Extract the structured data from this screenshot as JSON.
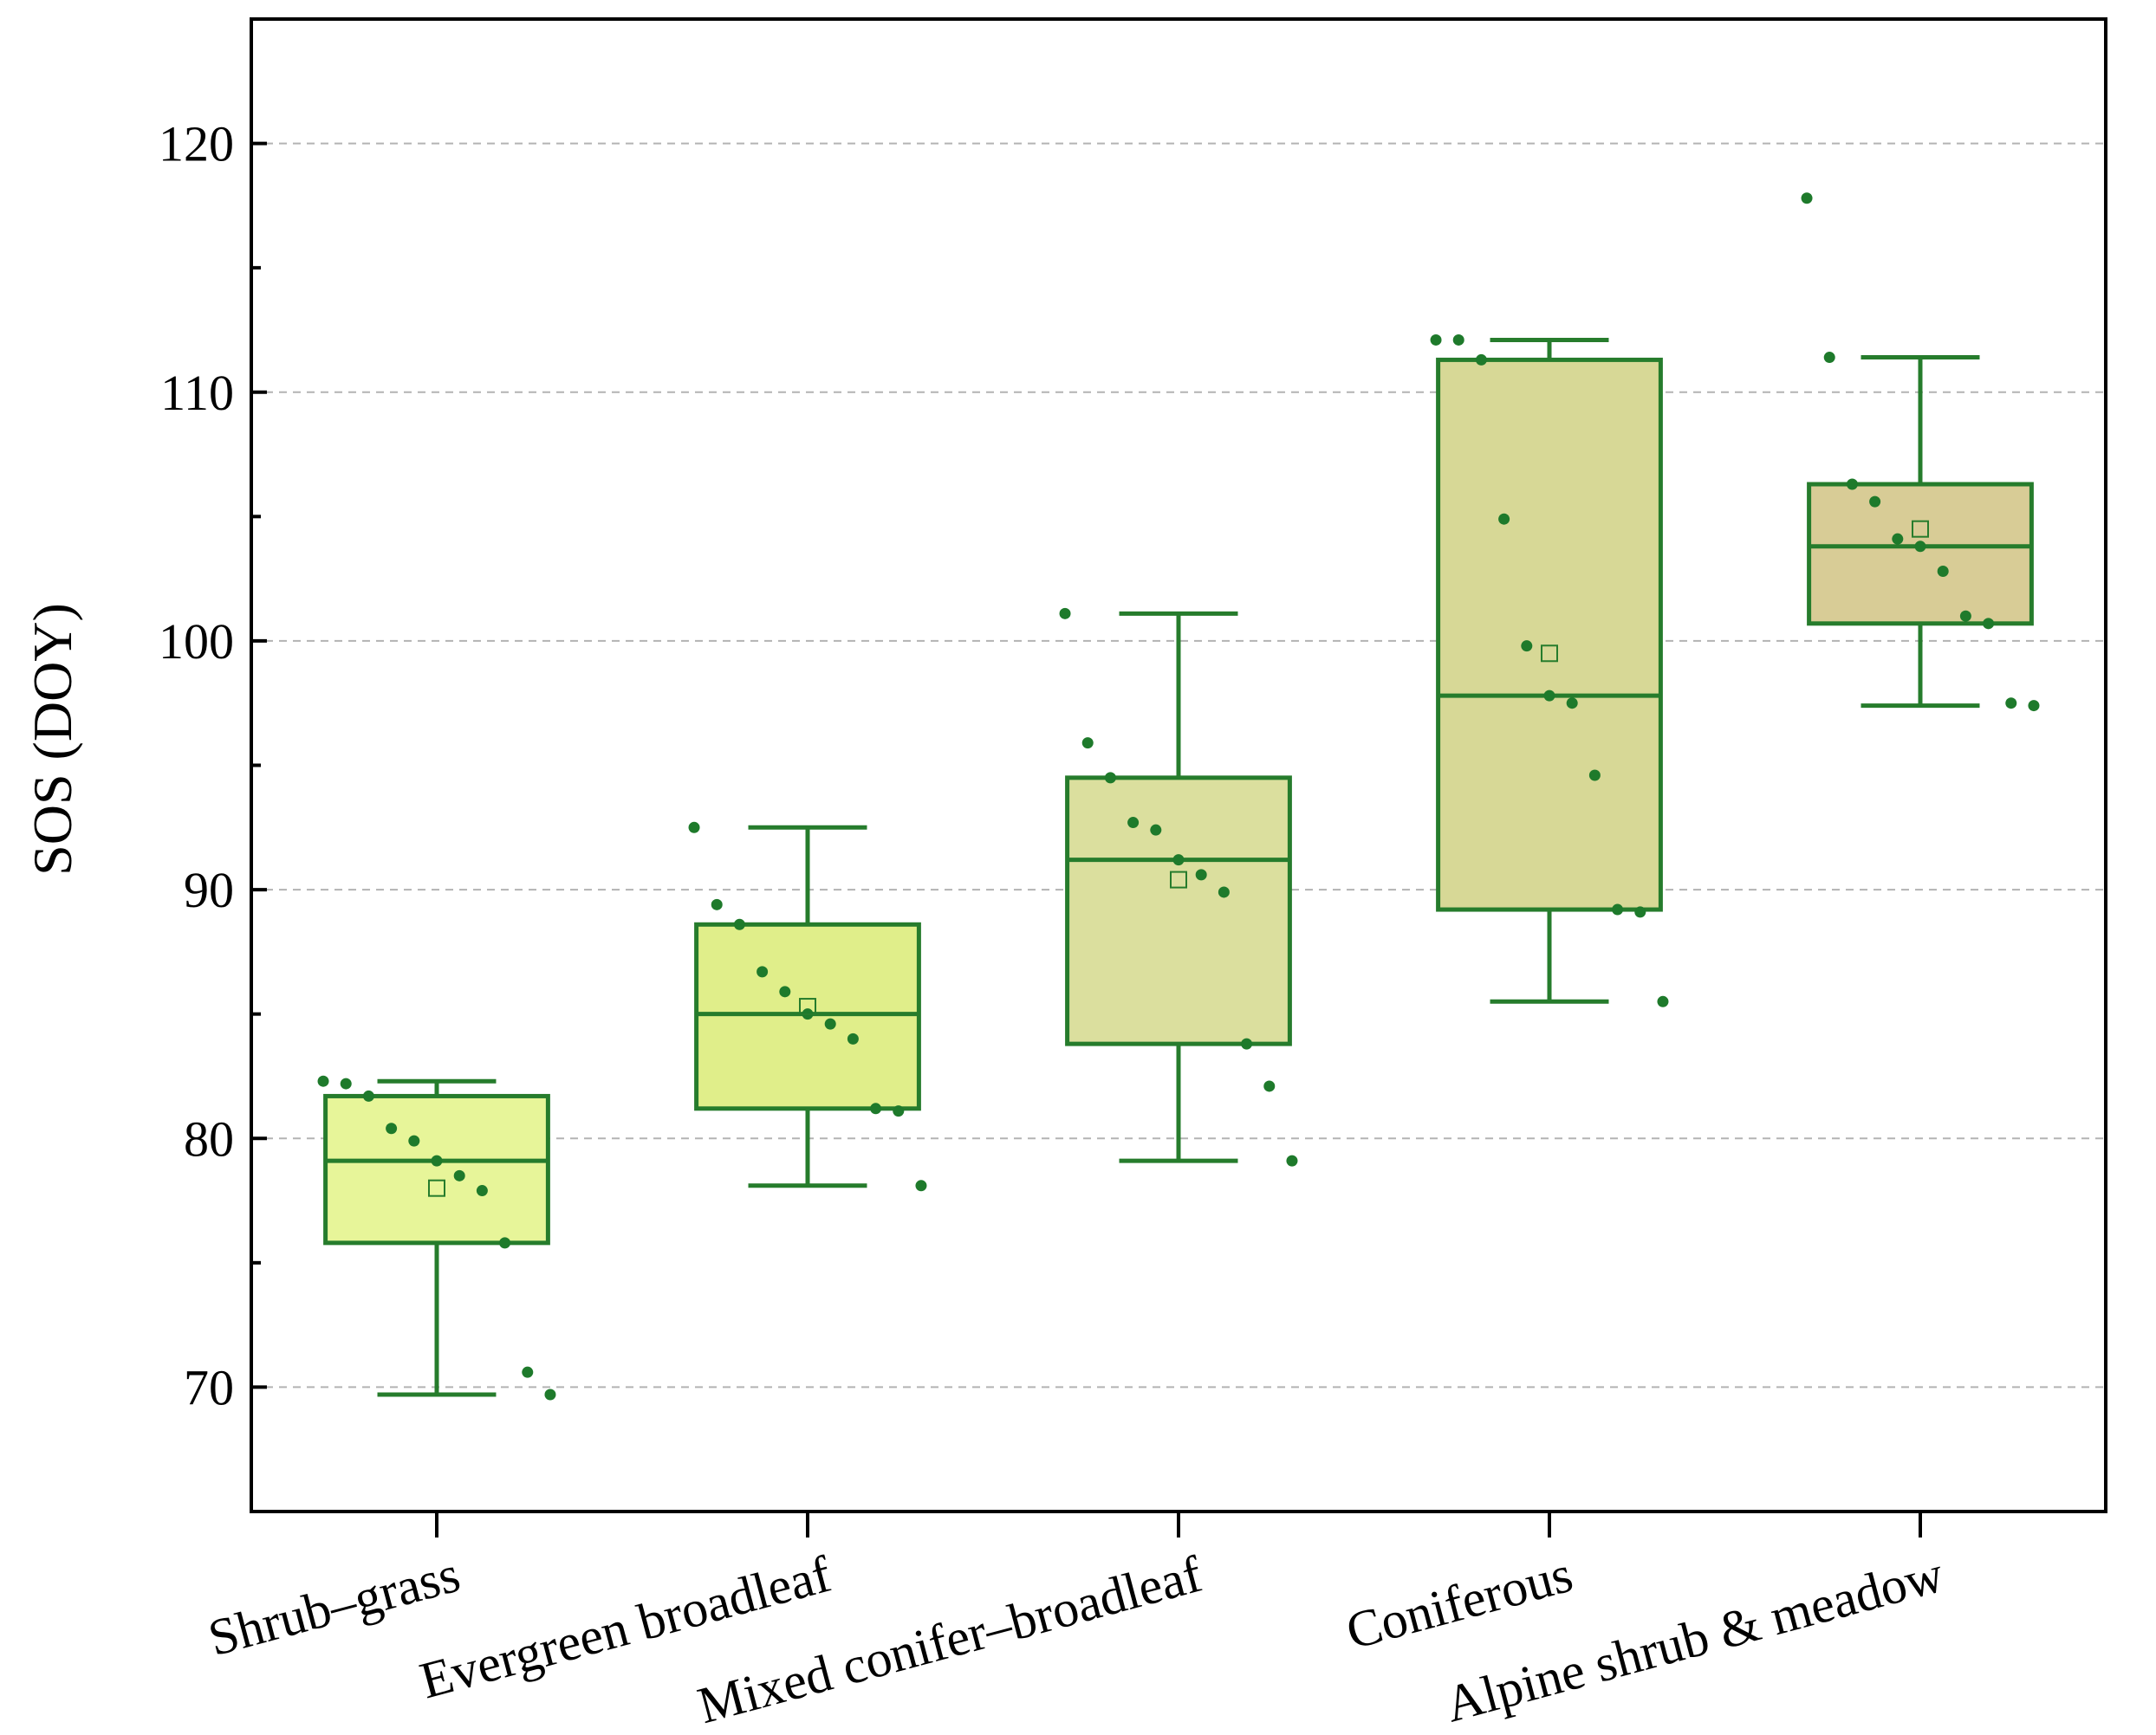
{
  "chart_data": {
    "type": "box",
    "title": "",
    "xlabel": "",
    "ylabel": "SOS (DOY)",
    "ylim": [
      65,
      125
    ],
    "yticks": [
      70,
      80,
      90,
      100,
      110,
      120
    ],
    "grid": "horizontal-dashed",
    "categories": [
      "Shrub–grass",
      "Evergreen broadleaf",
      "Mixed conifer–broadleaf",
      "Coniferous",
      "Alpine shrub & meadow"
    ],
    "boxes": [
      {
        "name": "Shrub–grass",
        "fill": "#e7f599",
        "whisker_low": 69.7,
        "q1": 75.8,
        "median": 79.1,
        "q3": 81.7,
        "whisker_high": 82.3,
        "mean": 78.0,
        "points": [
          82.3,
          82.2,
          81.7,
          80.4,
          79.9,
          79.1,
          78.5,
          77.9,
          75.8,
          70.6,
          69.7
        ]
      },
      {
        "name": "Evergreen broadleaf",
        "fill": "#e0ee8a",
        "whisker_low": 78.1,
        "q1": 81.2,
        "median": 85.0,
        "q3": 88.6,
        "whisker_high": 92.5,
        "mean": 85.3,
        "points": [
          92.5,
          89.4,
          88.6,
          86.7,
          85.9,
          85.0,
          84.6,
          84.0,
          81.2,
          81.1,
          78.1
        ]
      },
      {
        "name": "Mixed conifer–broadleaf",
        "fill": "#dbdf9e",
        "whisker_low": 79.1,
        "q1": 83.8,
        "median": 91.2,
        "q3": 94.5,
        "whisker_high": 101.1,
        "mean": 90.4,
        "points": [
          101.1,
          95.9,
          94.5,
          92.7,
          92.4,
          91.2,
          90.6,
          89.9,
          83.8,
          82.1,
          79.1
        ]
      },
      {
        "name": "Coniferous",
        "fill": "#d7d896",
        "whisker_low": 85.5,
        "q1": 89.2,
        "median": 97.8,
        "q3": 111.3,
        "whisker_high": 112.1,
        "mean": 99.5,
        "points": [
          112.1,
          112.1,
          111.3,
          104.9,
          99.8,
          97.8,
          97.5,
          94.6,
          89.2,
          89.1,
          85.5
        ]
      },
      {
        "name": "Alpine shrub & meadow",
        "fill": "#d8cc96",
        "whisker_low": 97.4,
        "q1": 100.7,
        "median": 103.8,
        "q3": 106.3,
        "whisker_high": 111.4,
        "mean": 104.5,
        "points": [
          117.8,
          111.4,
          106.3,
          105.6,
          104.1,
          103.8,
          102.8,
          101.0,
          100.7,
          97.5,
          97.4
        ]
      }
    ],
    "colors": {
      "stroke": "#267c2c",
      "point": "#1e7a2b",
      "grid": "#b3b3b3",
      "axis": "#000000"
    }
  }
}
